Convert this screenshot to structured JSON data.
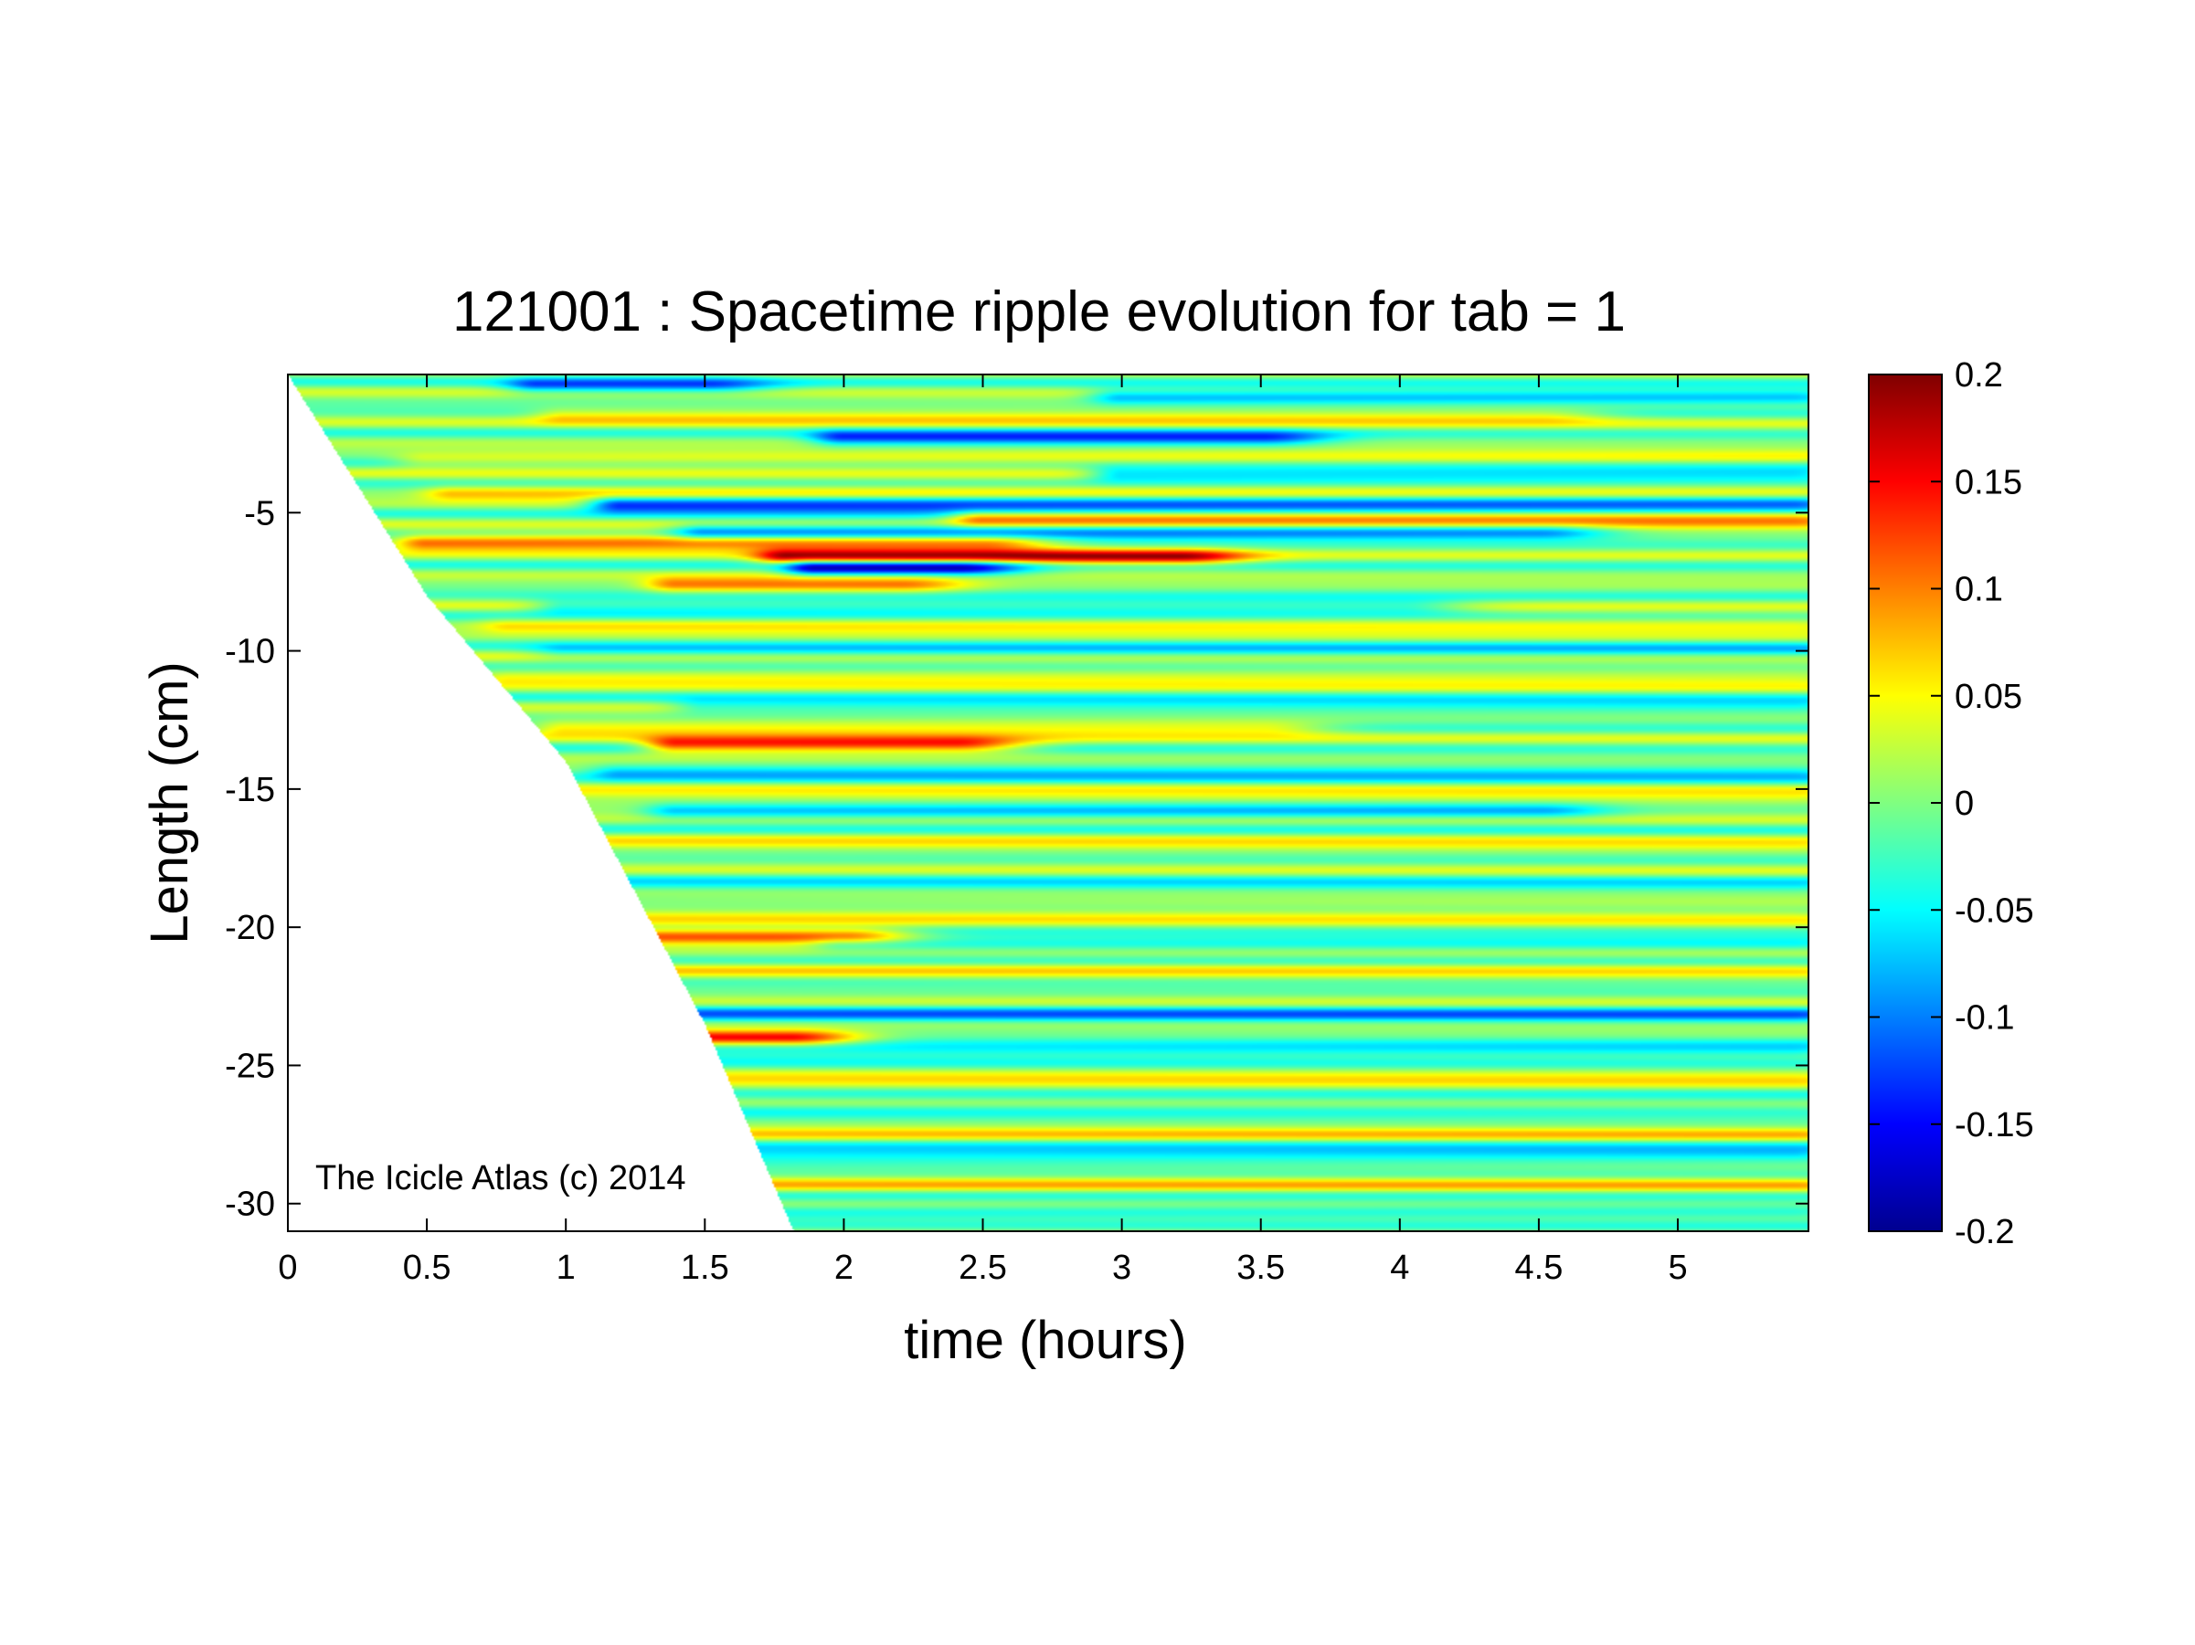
{
  "figure": {
    "watermark": "The Icicle Atlas (c) 2014"
  },
  "chart_data": {
    "type": "heatmap",
    "title": "121001 : Spacetime ripple evolution for tab = 1",
    "xlabel": "time (hours)",
    "ylabel": "Length (cm)",
    "xlim": [
      0,
      5.47
    ],
    "ylim": [
      -31,
      0
    ],
    "x_ticks": [
      0,
      0.5,
      1,
      1.5,
      2,
      2.5,
      3,
      3.5,
      4,
      4.5,
      5
    ],
    "x_tick_labels": [
      "0",
      "0.5",
      "1",
      "1.5",
      "2",
      "2.5",
      "3",
      "3.5",
      "4",
      "4.5",
      "5"
    ],
    "y_ticks": [
      -5,
      -10,
      -15,
      -20,
      -25,
      -30
    ],
    "y_tick_labels": [
      "-5",
      "-10",
      "-15",
      "-20",
      "-25",
      "-30"
    ],
    "colorbar": {
      "colormap": "jet",
      "clim": [
        -0.2,
        0.2
      ],
      "ticks": [
        0.2,
        0.15,
        0.1,
        0.05,
        0,
        -0.05,
        -0.1,
        -0.15,
        -0.2
      ],
      "tick_labels": [
        "0.2",
        "0.15",
        "0.1",
        "0.05",
        "0",
        "-0.05",
        "-0.1",
        "-0.15",
        "-0.2"
      ]
    },
    "growth_front": [
      {
        "t": 0.0,
        "length": 0.0
      },
      {
        "t": 0.5,
        "length": -8.0
      },
      {
        "t": 1.0,
        "length": -14.0
      },
      {
        "t": 1.5,
        "length": -23.5
      },
      {
        "t": 1.82,
        "length": -31.0
      }
    ],
    "ripple_bands": [
      {
        "length": -0.4,
        "amplitude": -0.1,
        "t_start": 0.9,
        "t_end": 1.5
      },
      {
        "length": -0.8,
        "amplitude": -0.09,
        "t_start": 3.0,
        "t_end": 5.4
      },
      {
        "length": -1.5,
        "amplitude": 0.06,
        "t_start": 1.0,
        "t_end": 4.5
      },
      {
        "length": -2.3,
        "amplitude": -0.12,
        "t_start": 2.0,
        "t_end": 3.5
      },
      {
        "length": -3.1,
        "amplitude": 0.05,
        "t_start": 0.5,
        "t_end": 5.4
      },
      {
        "length": -3.6,
        "amplitude": -0.1,
        "t_start": 3.0,
        "t_end": 5.4
      },
      {
        "length": -4.3,
        "amplitude": 0.07,
        "t_start": 0.6,
        "t_end": 5.4
      },
      {
        "length": -4.7,
        "amplitude": -0.16,
        "t_start": 1.2,
        "t_end": 5.4
      },
      {
        "length": -5.2,
        "amplitude": 0.12,
        "t_start": 2.5,
        "t_end": 5.4
      },
      {
        "length": -5.7,
        "amplitude": -0.1,
        "t_start": 1.5,
        "t_end": 4.5
      },
      {
        "length": -6.1,
        "amplitude": 0.12,
        "t_start": 0.5,
        "t_end": 2.5
      },
      {
        "length": -6.6,
        "amplitude": 0.16,
        "t_start": 1.8,
        "t_end": 3.2
      },
      {
        "length": -7.0,
        "amplitude": -0.17,
        "t_start": 1.9,
        "t_end": 2.4
      },
      {
        "length": -7.6,
        "amplitude": 0.1,
        "t_start": 1.4,
        "t_end": 2.2
      },
      {
        "length": -8.4,
        "amplitude": -0.07,
        "t_start": 1.0,
        "t_end": 4.0
      },
      {
        "length": -9.1,
        "amplitude": 0.05,
        "t_start": 0.8,
        "t_end": 5.4
      },
      {
        "length": -10.0,
        "amplitude": -0.05,
        "t_start": 1.0,
        "t_end": 5.4
      },
      {
        "length": -11.0,
        "amplitude": 0.05,
        "t_start": 0.8,
        "t_end": 5.4
      },
      {
        "length": -12.0,
        "amplitude": -0.06,
        "t_start": 1.5,
        "t_end": 5.4
      },
      {
        "length": -12.8,
        "amplitude": 0.07,
        "t_start": 1.0,
        "t_end": 3.5
      },
      {
        "length": -13.4,
        "amplitude": 0.15,
        "t_start": 1.4,
        "t_end": 2.4
      },
      {
        "length": -14.4,
        "amplitude": -0.07,
        "t_start": 1.2,
        "t_end": 5.4
      },
      {
        "length": -15.3,
        "amplitude": 0.05,
        "t_start": 1.0,
        "t_end": 5.4
      },
      {
        "length": -15.8,
        "amplitude": -0.08,
        "t_start": 1.4,
        "t_end": 4.5
      },
      {
        "length": -17.0,
        "amplitude": 0.04,
        "t_start": 1.2,
        "t_end": 5.4
      },
      {
        "length": -18.5,
        "amplitude": -0.04,
        "t_start": 1.2,
        "t_end": 5.4
      },
      {
        "length": -19.5,
        "amplitude": 0.05,
        "t_start": 1.3,
        "t_end": 5.4
      },
      {
        "length": -20.3,
        "amplitude": 0.13,
        "t_start": 1.35,
        "t_end": 2.0
      },
      {
        "length": -20.6,
        "amplitude": -0.05,
        "t_start": 2.0,
        "t_end": 5.4
      },
      {
        "length": -21.5,
        "amplitude": 0.04,
        "t_start": 1.4,
        "t_end": 5.4
      },
      {
        "length": -23.2,
        "amplitude": -0.09,
        "t_start": 1.5,
        "t_end": 5.4
      },
      {
        "length": -24.0,
        "amplitude": 0.17,
        "t_start": 1.5,
        "t_end": 1.8
      },
      {
        "length": -24.5,
        "amplitude": -0.08,
        "t_start": 1.5,
        "t_end": 5.4
      },
      {
        "length": -25.5,
        "amplitude": 0.05,
        "t_start": 1.6,
        "t_end": 5.4
      },
      {
        "length": -26.5,
        "amplitude": -0.04,
        "t_start": 1.6,
        "t_end": 5.4
      },
      {
        "length": -27.5,
        "amplitude": 0.05,
        "t_start": 1.7,
        "t_end": 5.4
      },
      {
        "length": -28.2,
        "amplitude": -0.09,
        "t_start": 1.7,
        "t_end": 5.4
      },
      {
        "length": -29.3,
        "amplitude": 0.05,
        "t_start": 1.75,
        "t_end": 5.4
      },
      {
        "length": -30.3,
        "amplitude": -0.05,
        "t_start": 1.8,
        "t_end": 5.4
      }
    ]
  }
}
